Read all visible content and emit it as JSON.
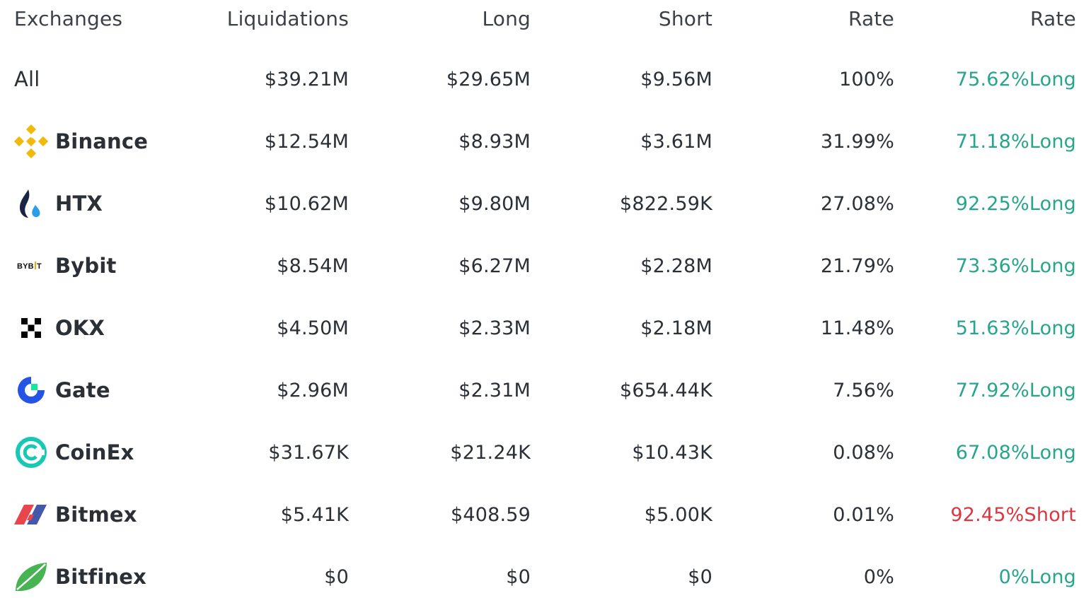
{
  "header": {
    "exchanges": "Exchanges",
    "liquidations": "Liquidations",
    "long": "Long",
    "short": "Short",
    "rate": "Rate",
    "rate2": "Rate"
  },
  "rows": [
    {
      "name": "All",
      "liquidations": "$39.21M",
      "long": "$29.65M",
      "short": "$9.56M",
      "rate": "100%",
      "side_rate": "75.62%Long"
    },
    {
      "name": "Binance",
      "icon": "binance-logo-icon",
      "liquidations": "$12.54M",
      "long": "$8.93M",
      "short": "$3.61M",
      "rate": "31.99%",
      "side_rate": "71.18%Long"
    },
    {
      "name": "HTX",
      "icon": "htx-logo-icon",
      "liquidations": "$10.62M",
      "long": "$9.80M",
      "short": "$822.59K",
      "rate": "27.08%",
      "side_rate": "92.25%Long"
    },
    {
      "name": "Bybit",
      "icon": "bybit-logo-icon",
      "icon_text": "BYBIT",
      "liquidations": "$8.54M",
      "long": "$6.27M",
      "short": "$2.28M",
      "rate": "21.79%",
      "side_rate": "73.36%Long"
    },
    {
      "name": "OKX",
      "icon": "okx-logo-icon",
      "liquidations": "$4.50M",
      "long": "$2.33M",
      "short": "$2.18M",
      "rate": "11.48%",
      "side_rate": "51.63%Long"
    },
    {
      "name": "Gate",
      "icon": "gate-logo-icon",
      "liquidations": "$2.96M",
      "long": "$2.31M",
      "short": "$654.44K",
      "rate": "7.56%",
      "side_rate": "77.92%Long"
    },
    {
      "name": "CoinEx",
      "icon": "coinex-logo-icon",
      "liquidations": "$31.67K",
      "long": "$21.24K",
      "short": "$10.43K",
      "rate": "0.08%",
      "side_rate": "67.08%Long"
    },
    {
      "name": "Bitmex",
      "icon": "bitmex-logo-icon",
      "liquidations": "$5.41K",
      "long": "$408.59",
      "short": "$5.00K",
      "rate": "0.01%",
      "side_rate": "92.45%Short"
    },
    {
      "name": "Bitfinex",
      "icon": "bitfinex-logo-icon",
      "liquidations": "$0",
      "long": "$0",
      "short": "$0",
      "rate": "0%",
      "side_rate": "0%Long"
    }
  ],
  "colors": {
    "long": "#27a58a",
    "short": "#dd3641",
    "text": "#2b2f36"
  }
}
